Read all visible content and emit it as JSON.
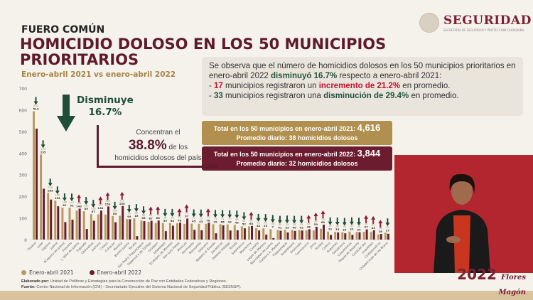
{
  "header": {
    "section": "FUERO COMÚN",
    "title": "HOMICIDIO DOLOSO EN LOS 50 MUNICIPIOS PRIORITARIOS",
    "subtitle": "Enero-abril 2021 vs enero-abril 2022",
    "logo": "SEGURIDAD",
    "logo_sub": "SECRETARÍA DE SEGURIDAD Y PROTECCIÓN CIUDADANA"
  },
  "info": {
    "p1": "Se observa que el número de homicidios dolosos en los 50 municipios prioritarios en enero-abril 2022 ",
    "p1b": "disminuyó 16.7%",
    "p1c": " respecto a enero-abril 2021:",
    "l1a": "- ",
    "l1n": "17",
    "l1b": " municipios registraron un ",
    "l1c": "incremento de 21.2%",
    "l1d": " en promedio.",
    "l2a": "- ",
    "l2n": "33",
    "l2b": " municipios registraron una ",
    "l2c": "disminución de 29.4%",
    "l2d": " en promedio."
  },
  "totals": {
    "t2021": "Total en los 50 municipios en enero-abril 2021: ",
    "v2021": "4,616",
    "p2021": "Promedio diario: 38 homicidios dolosos",
    "t2022": "Total en los 50 municipios en enero-abril 2022: ",
    "v2022": "3,844",
    "p2022": "Promedio diario: 32 homicidios dolosos"
  },
  "callouts": {
    "disminuye": "Disminuye",
    "pct": "16.7%",
    "conc1": "Concentran el",
    "conc_pct": "38.8%",
    "conc2": " de los",
    "conc3": "homicidios dolosos del país"
  },
  "legend": {
    "s2021": "Enero-abril 2021",
    "s2022": "Enero-abril 2022"
  },
  "credits": {
    "elab_label": "Elaborado por:",
    "elab": " Unidad de Políticas y Estrategias para la Construcción de Paz con Entidades Federativas y Regiones.",
    "fuente_label": "Fuente:",
    "fuente": " Centro Nacional de Información (CNI) - Secretariado Ejecutivo del Sistema Nacional de Seguridad Pública (SESNSP)."
  },
  "badge": {
    "year": "2022",
    "text": "Flores Magón"
  },
  "colors": {
    "s2021": "#b89a5e",
    "s2022": "#6b1c2e",
    "up": "#8b1d32",
    "down": "#1f4d38"
  },
  "chart_data": {
    "type": "bar",
    "ylim": [
      0,
      700
    ],
    "yticks": [
      0,
      100,
      200,
      300,
      400,
      500,
      600,
      700
    ],
    "categories": [
      "Tijuana",
      "León",
      "Cajeme",
      "Juárez",
      "Acapulco de Juárez",
      "Fresnillo",
      "J. Valle de Juárez",
      "Irapuato",
      "Chihuahua",
      "Zamora",
      "Celaya",
      "Culiacán",
      "Morelia",
      "Benito Juárez",
      "Tecate",
      "San Pedro Tlaquepaque",
      "Tlajomulco de Zúñiga",
      "Uruapan",
      "Iztapalapa",
      "Ecatepec de Morelos",
      "San Luis Potosí",
      "Mexicali",
      "Hermosillo",
      "Manzanillo",
      "Iztacalco",
      "Apaseo el Grande",
      "Zacatecas",
      "Dolores Hidalgo",
      "Tonalá",
      "Salamanca",
      "Monterrey",
      "Cuautla",
      "Lagos de Moreno",
      "Naucalpan de Juárez",
      "Gustavo A. Madero",
      "Tlaquepaque",
      "Guadalajara",
      "Ensenada",
      "Cuernavaca",
      "Jerez",
      "Puebla",
      "Colima",
      "Guaymas",
      "Salvatierra",
      "Cuauhtémoc",
      "Playas de Rosarito",
      "Culiacán Sur",
      "Cuautitlán",
      "Coatzacoalcos",
      "Chilpancingo de los Bravo"
    ],
    "series": [
      {
        "name": "Enero-abril 2021",
        "values": [
          593,
          393,
          216,
          180,
          148,
          147,
          134,
          131,
          118,
          117,
          116,
          109,
          110,
          95,
          98,
          88,
          82,
          76,
          76,
          76,
          75,
          73,
          74,
          73,
          73,
          71,
          71,
          70,
          68,
          61,
          61,
          53,
          52,
          48,
          44,
          45,
          44,
          44,
          43,
          42,
          50,
          37,
          36,
          34,
          37,
          35,
          36,
          35,
          24,
          32
        ]
      },
      {
        "name": "Enero-abril 2022",
        "values": [
          513,
          235,
          185,
          154,
          81,
          92,
          143,
          49,
          87,
          134,
          153,
          80,
          155,
          94,
          16,
          85,
          87,
          88,
          39,
          64,
          78,
          97,
          45,
          43,
          78,
          29,
          66,
          42,
          43,
          52,
          63,
          42,
          23,
          7,
          41,
          33,
          40,
          42,
          48,
          59,
          69,
          21,
          33,
          29,
          22,
          34,
          47,
          43,
          26,
          27
        ]
      }
    ]
  }
}
